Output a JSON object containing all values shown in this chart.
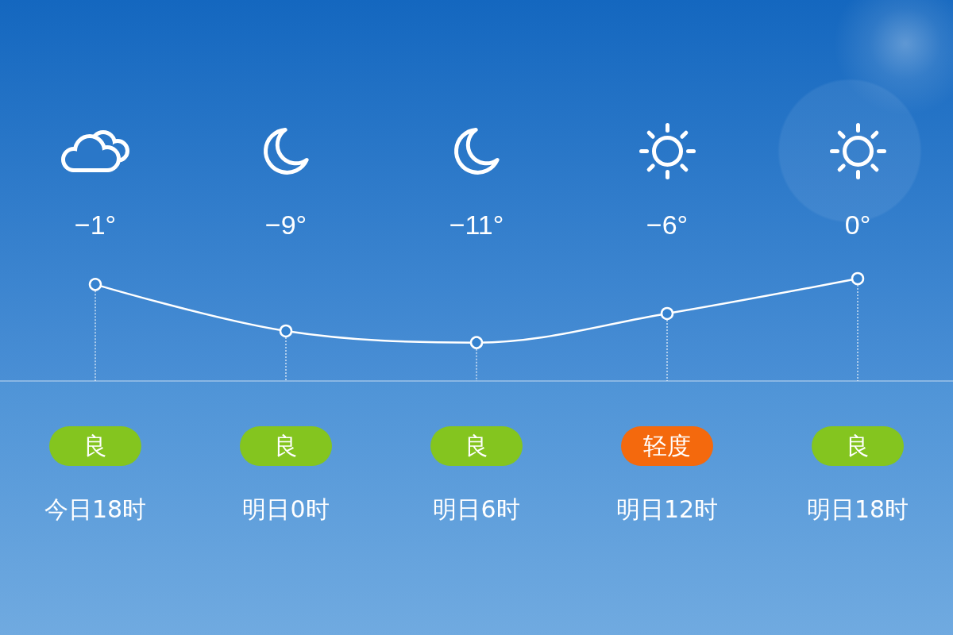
{
  "chart_data": {
    "type": "line",
    "categories": [
      "今日18时",
      "明日0时",
      "明日6时",
      "明日12时",
      "明日18时"
    ],
    "series": [
      {
        "color": "#ffffff",
        "values": [
          -1,
          -9,
          -11,
          -6,
          0
        ],
        "value_labels": [
          "−1°",
          "−9°",
          "−11°",
          "−6°",
          "0°"
        ]
      }
    ],
    "marker": "circle",
    "line_style": "solid",
    "tick_labels": "x",
    "grid": "x",
    "annotations": [
      "良",
      "良",
      "良",
      "轻度",
      "良"
    ]
  }
}
